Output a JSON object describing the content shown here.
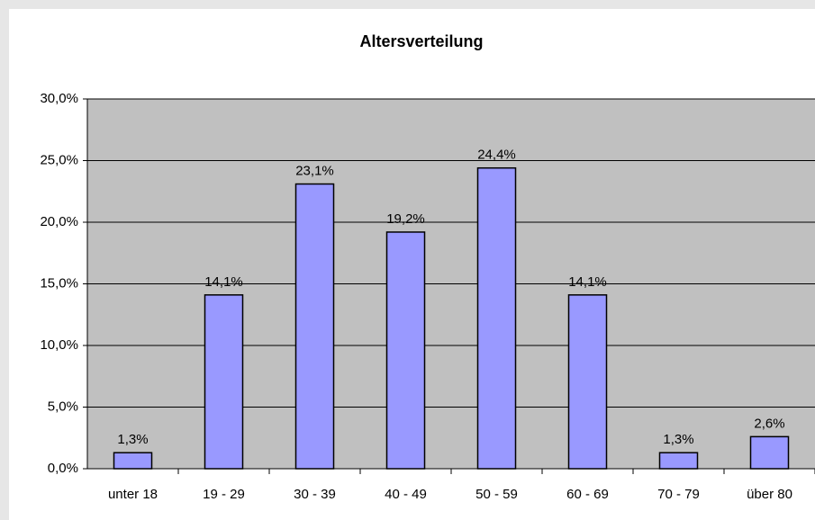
{
  "chart_data": {
    "type": "bar",
    "title": "Altersverteilung",
    "categories": [
      "unter 18",
      "19 - 29",
      "30 - 39",
      "40 - 49",
      "50 - 59",
      "60 - 69",
      "70 - 79",
      "über 80"
    ],
    "values": [
      1.3,
      14.1,
      23.1,
      19.2,
      24.4,
      14.1,
      1.3,
      2.6
    ],
    "value_labels": [
      "1,3%",
      "14,1%",
      "23,1%",
      "19,2%",
      "24,4%",
      "14,1%",
      "1,3%",
      "2,6%"
    ],
    "color": "#9999ff",
    "ylim": [
      0,
      30
    ],
    "yticks": [
      {
        "value": 0,
        "label": "0,0%"
      },
      {
        "value": 5,
        "label": "5,0%"
      },
      {
        "value": 10,
        "label": "10,0%"
      },
      {
        "value": 15,
        "label": "15,0%"
      },
      {
        "value": 20,
        "label": "20,0%"
      },
      {
        "value": 25,
        "label": "25,0%"
      },
      {
        "value": 30,
        "label": "30,0%"
      }
    ],
    "grid": true
  }
}
